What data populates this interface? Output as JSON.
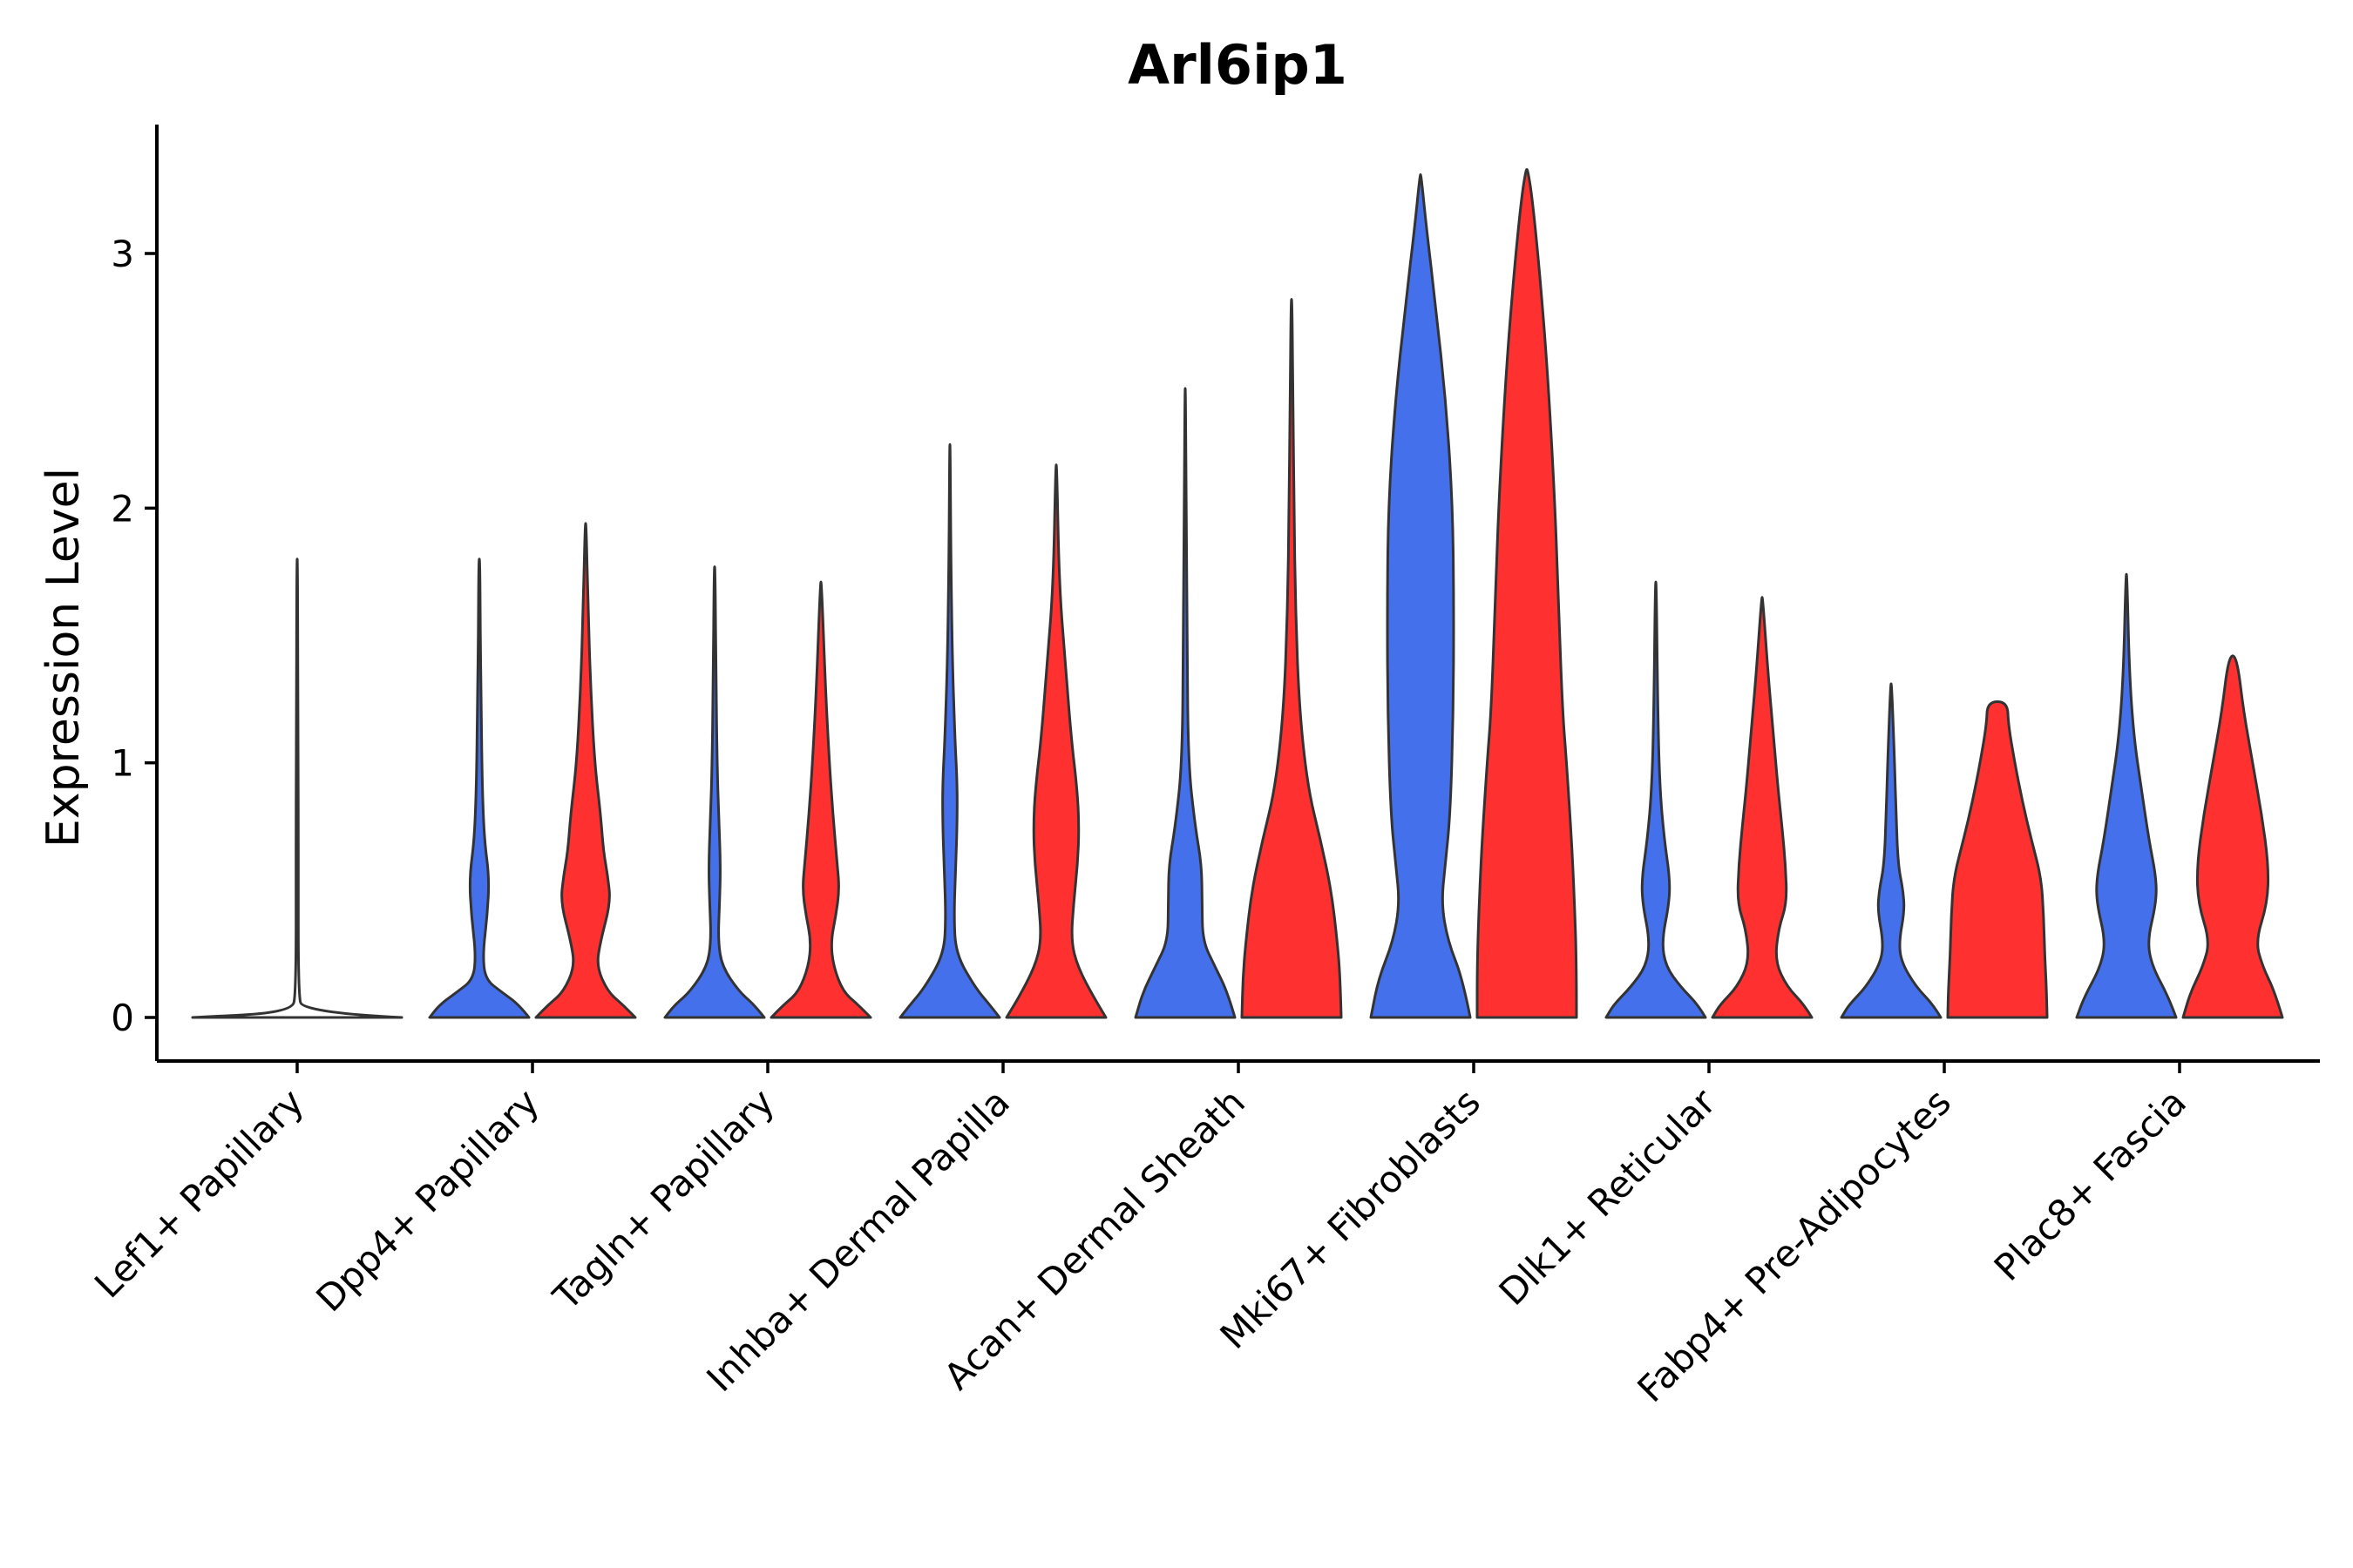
{
  "chart_data": {
    "type": "violin",
    "title": "Arl6ip1",
    "xlabel": "",
    "ylabel": "Expression Level",
    "ylim": [
      -0.17,
      3.5
    ],
    "yticks": [
      0,
      1,
      2,
      3
    ],
    "grid": false,
    "legend": "none",
    "colors": {
      "group1": "#4570EC",
      "group2": "#FF3030",
      "single": "#FFFFFF",
      "stroke": "#333333"
    },
    "categories": [
      "Lef1+ Papillary",
      "Dpp4+ Papillary",
      "Tagln+ Papillary",
      "Inhba+ Dermal Papilla",
      "Acan+ Dermal Sheath",
      "Mki67+ Fibroblasts",
      "Dlk1+ Reticular",
      "Fabp4+ Pre-Adipocytes",
      "Plac8+ Fascia"
    ],
    "violins": [
      {
        "category": "Lef1+ Papillary",
        "group": "single",
        "max": 1.8,
        "profile": [
          [
            0,
            1.0
          ],
          [
            0.02,
            0.05
          ],
          [
            0.1,
            0.012
          ],
          [
            0.6,
            0.01
          ],
          [
            0.7,
            0.012
          ],
          [
            1.0,
            0.008
          ],
          [
            1.8,
            0.004
          ]
        ]
      },
      {
        "category": "Dpp4+ Papillary",
        "group": 1,
        "max": 1.8,
        "profile": [
          [
            0,
            1.0
          ],
          [
            0.05,
            0.8
          ],
          [
            0.1,
            0.45
          ],
          [
            0.15,
            0.12
          ],
          [
            0.25,
            0.07
          ],
          [
            0.4,
            0.16
          ],
          [
            0.55,
            0.2
          ],
          [
            0.7,
            0.1
          ],
          [
            0.9,
            0.06
          ],
          [
            1.2,
            0.04
          ],
          [
            1.5,
            0.02
          ],
          [
            1.8,
            0.01
          ]
        ]
      },
      {
        "category": "Dpp4+ Papillary",
        "group": 2,
        "max": 1.94,
        "profile": [
          [
            0,
            1.0
          ],
          [
            0.05,
            0.75
          ],
          [
            0.1,
            0.45
          ],
          [
            0.2,
            0.22
          ],
          [
            0.3,
            0.3
          ],
          [
            0.45,
            0.5
          ],
          [
            0.55,
            0.45
          ],
          [
            0.65,
            0.36
          ],
          [
            0.8,
            0.3
          ],
          [
            1.0,
            0.18
          ],
          [
            1.3,
            0.1
          ],
          [
            1.6,
            0.05
          ],
          [
            1.94,
            0.01
          ]
        ]
      },
      {
        "category": "Tagln+ Papillary",
        "group": 1,
        "max": 1.77,
        "profile": [
          [
            0,
            1.0
          ],
          [
            0.05,
            0.8
          ],
          [
            0.1,
            0.5
          ],
          [
            0.2,
            0.15
          ],
          [
            0.3,
            0.07
          ],
          [
            0.45,
            0.1
          ],
          [
            0.6,
            0.12
          ],
          [
            0.8,
            0.08
          ],
          [
            1.0,
            0.05
          ],
          [
            1.3,
            0.03
          ],
          [
            1.77,
            0.01
          ]
        ]
      },
      {
        "category": "Tagln+ Papillary",
        "group": 2,
        "max": 1.71,
        "profile": [
          [
            0,
            1.0
          ],
          [
            0.05,
            0.75
          ],
          [
            0.1,
            0.45
          ],
          [
            0.2,
            0.25
          ],
          [
            0.3,
            0.2
          ],
          [
            0.4,
            0.3
          ],
          [
            0.5,
            0.37
          ],
          [
            0.6,
            0.33
          ],
          [
            0.8,
            0.24
          ],
          [
            1.0,
            0.17
          ],
          [
            1.3,
            0.09
          ],
          [
            1.71,
            0.01
          ]
        ]
      },
      {
        "category": "Inhba+ Dermal Papilla",
        "group": 1,
        "max": 2.25,
        "profile": [
          [
            0,
            1.0
          ],
          [
            0.05,
            0.8
          ],
          [
            0.12,
            0.5
          ],
          [
            0.25,
            0.12
          ],
          [
            0.4,
            0.08
          ],
          [
            0.6,
            0.12
          ],
          [
            0.8,
            0.15
          ],
          [
            0.95,
            0.14
          ],
          [
            1.1,
            0.1
          ],
          [
            1.4,
            0.05
          ],
          [
            1.8,
            0.02
          ],
          [
            2.25,
            0.005
          ]
        ]
      },
      {
        "category": "Inhba+ Dermal Papilla",
        "group": 2,
        "max": 2.17,
        "profile": [
          [
            0,
            1.0
          ],
          [
            0.08,
            0.75
          ],
          [
            0.2,
            0.43
          ],
          [
            0.3,
            0.3
          ],
          [
            0.45,
            0.35
          ],
          [
            0.6,
            0.43
          ],
          [
            0.75,
            0.46
          ],
          [
            0.9,
            0.42
          ],
          [
            1.1,
            0.3
          ],
          [
            1.4,
            0.18
          ],
          [
            1.7,
            0.06
          ],
          [
            2.17,
            0.01
          ]
        ]
      },
      {
        "category": "Acan+ Dermal Sheath",
        "group": 1,
        "max": 2.47,
        "profile": [
          [
            0,
            1.0
          ],
          [
            0.1,
            0.85
          ],
          [
            0.2,
            0.6
          ],
          [
            0.3,
            0.35
          ],
          [
            0.45,
            0.34
          ],
          [
            0.6,
            0.33
          ],
          [
            0.75,
            0.2
          ],
          [
            1.0,
            0.06
          ],
          [
            1.5,
            0.04
          ],
          [
            2.0,
            0.02
          ],
          [
            2.47,
            0.005
          ]
        ]
      },
      {
        "category": "Acan+ Dermal Sheath",
        "group": 2,
        "max": 2.82,
        "profile": [
          [
            0,
            1.0
          ],
          [
            0.15,
            0.98
          ],
          [
            0.3,
            0.92
          ],
          [
            0.5,
            0.8
          ],
          [
            0.7,
            0.58
          ],
          [
            0.9,
            0.33
          ],
          [
            1.2,
            0.16
          ],
          [
            1.6,
            0.08
          ],
          [
            2.0,
            0.05
          ],
          [
            2.4,
            0.03
          ],
          [
            2.82,
            0.01
          ]
        ]
      },
      {
        "category": "Mki67+ Fibroblasts",
        "group": 1,
        "max": 3.31,
        "profile": [
          [
            0,
            1.0
          ],
          [
            0.15,
            0.85
          ],
          [
            0.3,
            0.55
          ],
          [
            0.45,
            0.42
          ],
          [
            0.6,
            0.5
          ],
          [
            0.8,
            0.6
          ],
          [
            1.2,
            0.66
          ],
          [
            1.6,
            0.67
          ],
          [
            2.0,
            0.65
          ],
          [
            2.4,
            0.52
          ],
          [
            2.8,
            0.3
          ],
          [
            3.1,
            0.12
          ],
          [
            3.31,
            0.01
          ]
        ]
      },
      {
        "category": "Mki67+ Fibroblasts",
        "group": 2,
        "max": 3.33,
        "profile": [
          [
            0,
            1.0
          ],
          [
            0.2,
            1.0
          ],
          [
            0.45,
            0.96
          ],
          [
            0.7,
            0.9
          ],
          [
            1.0,
            0.8
          ],
          [
            1.2,
            0.72
          ],
          [
            1.6,
            0.64
          ],
          [
            2.0,
            0.57
          ],
          [
            2.5,
            0.43
          ],
          [
            2.9,
            0.27
          ],
          [
            3.2,
            0.12
          ],
          [
            3.33,
            0.02
          ]
        ]
      },
      {
        "category": "Dlk1+ Reticular",
        "group": 1,
        "max": 1.71,
        "profile": [
          [
            0,
            1.0
          ],
          [
            0.05,
            0.85
          ],
          [
            0.12,
            0.5
          ],
          [
            0.2,
            0.2
          ],
          [
            0.3,
            0.12
          ],
          [
            0.45,
            0.27
          ],
          [
            0.55,
            0.28
          ],
          [
            0.7,
            0.17
          ],
          [
            0.9,
            0.08
          ],
          [
            1.2,
            0.04
          ],
          [
            1.71,
            0.01
          ]
        ]
      },
      {
        "category": "Dlk1+ Reticular",
        "group": 2,
        "max": 1.65,
        "profile": [
          [
            0,
            1.0
          ],
          [
            0.05,
            0.85
          ],
          [
            0.12,
            0.5
          ],
          [
            0.22,
            0.26
          ],
          [
            0.35,
            0.33
          ],
          [
            0.45,
            0.5
          ],
          [
            0.6,
            0.47
          ],
          [
            0.75,
            0.4
          ],
          [
            0.9,
            0.32
          ],
          [
            1.1,
            0.23
          ],
          [
            1.35,
            0.12
          ],
          [
            1.65,
            0.01
          ]
        ]
      },
      {
        "category": "Fabp4+ Pre-Adipocytes",
        "group": 1,
        "max": 1.31,
        "profile": [
          [
            0,
            1.0
          ],
          [
            0.05,
            0.85
          ],
          [
            0.12,
            0.5
          ],
          [
            0.22,
            0.2
          ],
          [
            0.3,
            0.16
          ],
          [
            0.42,
            0.27
          ],
          [
            0.5,
            0.24
          ],
          [
            0.6,
            0.14
          ],
          [
            0.8,
            0.1
          ],
          [
            1.0,
            0.07
          ],
          [
            1.31,
            0.01
          ]
        ]
      },
      {
        "category": "Fabp4+ Pre-Adipocytes",
        "group": 2,
        "max": 1.24,
        "profile": [
          [
            0,
            1.0
          ],
          [
            0.1,
            0.99
          ],
          [
            0.25,
            0.95
          ],
          [
            0.4,
            0.93
          ],
          [
            0.55,
            0.88
          ],
          [
            0.7,
            0.68
          ],
          [
            0.85,
            0.5
          ],
          [
            1.0,
            0.35
          ],
          [
            1.15,
            0.22
          ],
          [
            1.24,
            0.2
          ]
        ]
      },
      {
        "category": "Plac8+ Fascia",
        "group": 1,
        "max": 1.74,
        "profile": [
          [
            0,
            1.0
          ],
          [
            0.08,
            0.85
          ],
          [
            0.2,
            0.52
          ],
          [
            0.3,
            0.42
          ],
          [
            0.45,
            0.6
          ],
          [
            0.55,
            0.6
          ],
          [
            0.7,
            0.45
          ],
          [
            0.9,
            0.3
          ],
          [
            1.1,
            0.15
          ],
          [
            1.35,
            0.06
          ],
          [
            1.74,
            0.01
          ]
        ]
      },
      {
        "category": "Plac8+ Fascia",
        "group": 2,
        "max": 1.42,
        "profile": [
          [
            0,
            1.0
          ],
          [
            0.1,
            0.85
          ],
          [
            0.2,
            0.6
          ],
          [
            0.3,
            0.46
          ],
          [
            0.45,
            0.7
          ],
          [
            0.6,
            0.72
          ],
          [
            0.8,
            0.58
          ],
          [
            1.0,
            0.4
          ],
          [
            1.2,
            0.22
          ],
          [
            1.42,
            0.08
          ]
        ]
      }
    ]
  }
}
